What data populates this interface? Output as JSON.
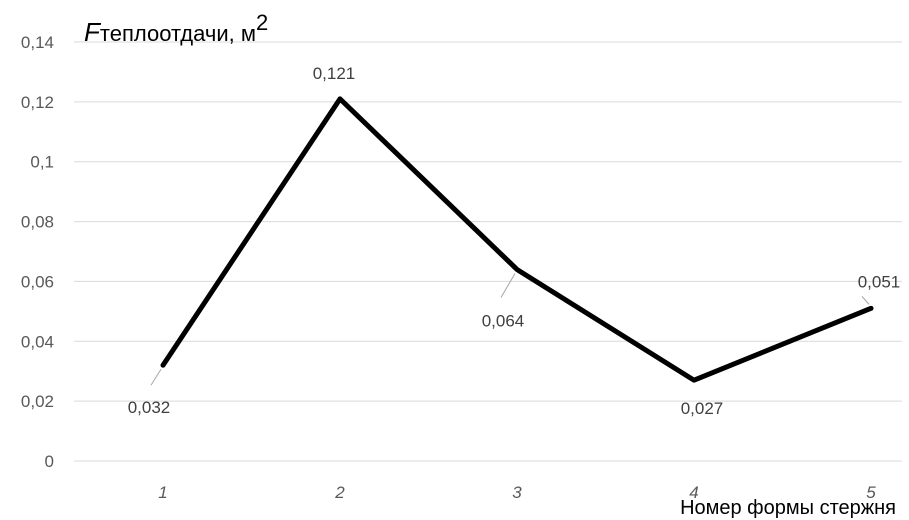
{
  "chart_data": {
    "type": "line",
    "categories": [
      "1",
      "2",
      "3",
      "4",
      "5"
    ],
    "series": [
      {
        "values": [
          0.032,
          0.121,
          0.064,
          0.027,
          0.051
        ],
        "color": "#000000"
      }
    ],
    "data_labels": [
      "0,032",
      "0,121",
      "0,064",
      "0,027",
      "0,051"
    ],
    "y_ticks": [
      0,
      0.02,
      0.04,
      0.06,
      0.08,
      0.1,
      0.12,
      0.14
    ],
    "y_tick_labels": [
      "0",
      "0,02",
      "0,04",
      "0,06",
      "0,08",
      "0,1",
      "0,12",
      "0,14"
    ],
    "ylim": [
      0,
      0.14
    ],
    "ylabel_main": "F",
    "ylabel_rest": "теплоотдачи, м",
    "ylabel_sup": "2",
    "xlabel": "Номер формы стержня",
    "grid": "horizontal",
    "legend": "none",
    "colors": {
      "grid": "#d9d9d9",
      "tick_text": "#595959",
      "label_text": "#404040",
      "leader": "#a6a6a6"
    }
  }
}
